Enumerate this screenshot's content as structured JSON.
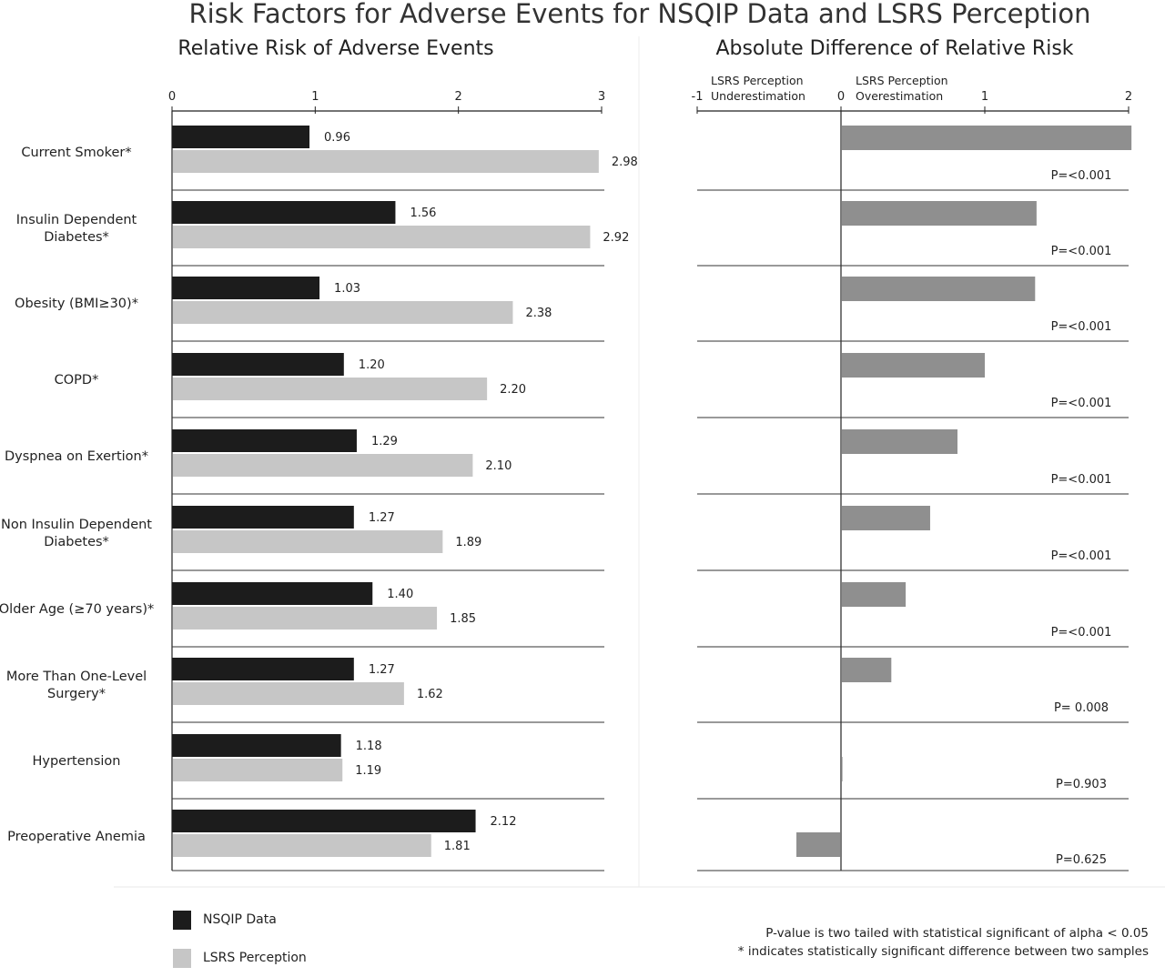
{
  "colors": {
    "nsqip": "#1c1c1c",
    "lsrs": "#c6c6c6",
    "difference": "#8f8f8f",
    "axis": "#222222",
    "separator": "#333333"
  },
  "chart_data": {
    "title": "Risk Factors for Adverse Events for NSQIP Data and LSRS Perception",
    "legend": {
      "position": "bottom-left",
      "items": [
        {
          "name": "NSQIP Data",
          "color": "#1c1c1c"
        },
        {
          "name": "LSRS Perception",
          "color": "#c6c6c6"
        }
      ]
    },
    "footnotes": [
      "P-value is two tailed with statistical significant of alpha < 0.05",
      "* indicates statistically significant difference between two samples"
    ],
    "panels": [
      {
        "type": "bar",
        "orientation": "horizontal",
        "title": "Relative Risk of Adverse Events",
        "xlim": [
          0,
          3
        ],
        "xticks": [
          "0",
          "1",
          "2",
          "3"
        ],
        "categories": [
          {
            "line1": "Current Smoker*",
            "line2": ""
          },
          {
            "line1": "Insulin Dependent",
            "line2": "Diabetes*"
          },
          {
            "line1": "Obesity (BMI≥30)*",
            "line2": ""
          },
          {
            "line1": "COPD*",
            "line2": ""
          },
          {
            "line1": "Dyspnea on Exertion*",
            "line2": ""
          },
          {
            "line1": "Non Insulin Dependent",
            "line2": "Diabetes*"
          },
          {
            "line1": "Older Age (≥70 years)*",
            "line2": ""
          },
          {
            "line1": "More Than One-Level",
            "line2": "Surgery*"
          },
          {
            "line1": "Hypertension",
            "line2": ""
          },
          {
            "line1": "Preoperative Anemia",
            "line2": ""
          }
        ],
        "series": [
          {
            "name": "NSQIP Data",
            "values": [
              0.96,
              1.56,
              1.03,
              1.2,
              1.29,
              1.27,
              1.4,
              1.27,
              1.18,
              2.12
            ],
            "labels": [
              "0.96",
              "1.56",
              "1.03",
              "1.20",
              "1.29",
              "1.27",
              "1.40",
              "1.27",
              "1.18",
              "2.12"
            ]
          },
          {
            "name": "LSRS Perception",
            "values": [
              2.98,
              2.92,
              2.38,
              2.2,
              2.1,
              1.89,
              1.85,
              1.62,
              1.19,
              1.81
            ],
            "labels": [
              "2.98",
              "2.92",
              "2.38",
              "2.20",
              "2.10",
              "1.89",
              "1.85",
              "1.62",
              "1.19",
              "1.81"
            ]
          }
        ]
      },
      {
        "type": "bar",
        "orientation": "horizontal",
        "title": "Absolute Difference of Relative Risk",
        "xlim": [
          -1,
          2
        ],
        "xticks": [
          "-1",
          "0",
          "1",
          "2"
        ],
        "direction_labels": {
          "negative": [
            "LSRS Perception",
            "Underestimation"
          ],
          "positive": [
            "LSRS Perception",
            "Overestimation"
          ]
        },
        "values": [
          2.02,
          1.36,
          1.35,
          1.0,
          0.81,
          0.62,
          0.45,
          0.35,
          0.01,
          -0.31
        ],
        "p_values": [
          "P=<0.001",
          "P=<0.001",
          "P=<0.001",
          "P=<0.001",
          "P=<0.001",
          "P=<0.001",
          "P=<0.001",
          "P= 0.008",
          "P=0.903",
          "P=0.625"
        ]
      }
    ]
  }
}
